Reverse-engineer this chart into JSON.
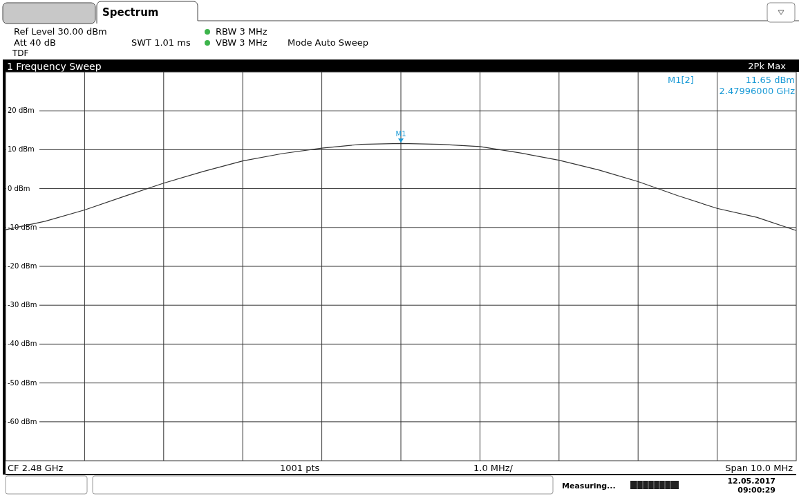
{
  "chart_data": {
    "type": "line",
    "title": "1 Frequency Sweep",
    "categories": [
      null,
      null,
      null,
      null,
      null,
      null,
      null,
      null,
      null,
      null,
      null,
      null,
      null,
      null,
      null,
      null,
      null,
      null,
      null,
      null,
      null
    ],
    "series": [
      {
        "color": "#333333",
        "values": [
          -10.6,
          -8.4,
          -5.5,
          -2.0,
          1.4,
          4.4,
          7.1,
          9.0,
          10.4,
          11.4,
          11.6,
          11.4,
          10.8,
          9.2,
          7.3,
          4.8,
          1.8,
          -1.8,
          -5.1,
          -7.4,
          -10.8
        ]
      }
    ],
    "ylim": [
      -70,
      30
    ],
    "yticks": [
      {
        "value": 20,
        "label": "20 dBm"
      },
      {
        "value": 10,
        "label": "10 dBm"
      },
      {
        "value": 0,
        "label": "0 dBm"
      },
      {
        "value": -10,
        "label": "-10 dBm"
      },
      {
        "value": -20,
        "label": "-20 dBm"
      },
      {
        "value": -30,
        "label": "-30 dBm"
      },
      {
        "value": -40,
        "label": "-40 dBm"
      },
      {
        "value": -50,
        "label": "-50 dBm"
      },
      {
        "value": -60,
        "label": "-60 dBm"
      }
    ],
    "grid": true,
    "marker": "none",
    "line_style": "solid",
    "annotations": [
      "Spectrum",
      "Ref Level 30.00 dBm",
      "Att 40 dB",
      "SWT 1.01 ms",
      "RBW 3 MHz",
      "VBW 3 MHz",
      "Mode Auto Sweep",
      "TDF",
      "2Pk Max",
      "M1[2]",
      "11.65 dBm",
      "2.47996000 GHz",
      "CF 2.48 GHz",
      "1001 pts",
      "1.0 MHz/",
      "Span 10.0 MHz",
      "Measuring...",
      "12.05.2017",
      "09:00:29",
      {
        "text": "M1",
        "y": 11.65
      }
    ]
  }
}
